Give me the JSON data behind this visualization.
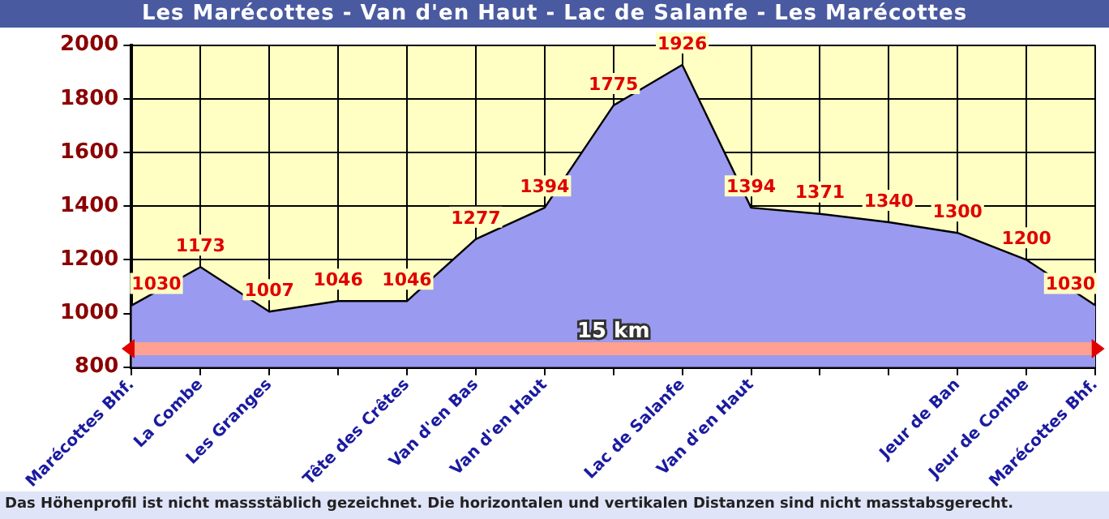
{
  "chart_data": {
    "type": "area",
    "title": "Les Marécottes - Van d'en Haut - Lac de Salanfe - Les Marécottes",
    "categories": [
      "Marécottes Bhf.",
      "La Combe",
      "Les Granges",
      null,
      "Tête des Crêtes",
      "Van d'en Bas",
      "Van d'en Haut",
      null,
      "Lac de Salanfe",
      "Van d'en Haut",
      null,
      null,
      "Jeur de Ban",
      "Jeur de Combe",
      "Marécottes Bhf."
    ],
    "values": [
      1030,
      1173,
      1007,
      1046,
      1046,
      1277,
      1394,
      1775,
      1926,
      1394,
      1371,
      1340,
      1300,
      1200,
      1030
    ],
    "color": "#9a9af0",
    "ylim": [
      800,
      2000
    ],
    "yticks": [
      800,
      1000,
      1200,
      1400,
      1600,
      1800,
      2000
    ],
    "grid": true,
    "data_labels": true,
    "annotations": [
      "15 km",
      "Das Höhenprofil ist nicht massstäblich gezeichnet. Die horizontalen und vertikalen Distanzen sind nicht masstabsgerecht."
    ]
  }
}
